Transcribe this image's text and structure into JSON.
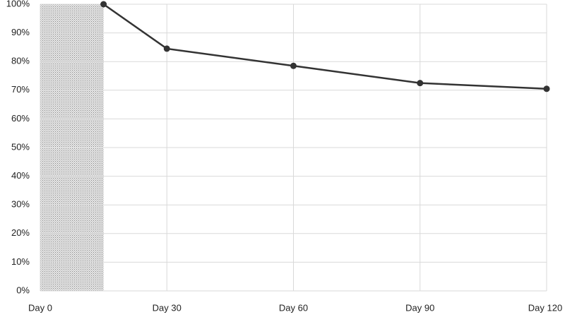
{
  "chart_data": {
    "type": "line",
    "x": [
      15,
      30,
      60,
      90,
      120
    ],
    "series": [
      {
        "values": [
          100,
          84.5,
          78.5,
          72.5,
          70.5
        ],
        "color": "#333333"
      }
    ],
    "shade": [
      0,
      15
    ],
    "xlim": [
      0,
      120
    ],
    "xticks": [
      {
        "value": 0,
        "label": "Day 0"
      },
      {
        "value": 30,
        "label": "Day 30"
      },
      {
        "value": 60,
        "label": "Day 60"
      },
      {
        "value": 90,
        "label": "Day 90"
      },
      {
        "value": 120,
        "label": "Day 120"
      }
    ],
    "ylim": [
      0,
      100
    ],
    "yticks": [
      {
        "value": 0,
        "label": "0%"
      },
      {
        "value": 10,
        "label": "10%"
      },
      {
        "value": 20,
        "label": "20%"
      },
      {
        "value": 30,
        "label": "30%"
      },
      {
        "value": 40,
        "label": "40%"
      },
      {
        "value": 50,
        "label": "50%"
      },
      {
        "value": 60,
        "label": "60%"
      },
      {
        "value": 70,
        "label": "70%"
      },
      {
        "value": 80,
        "label": "80%"
      },
      {
        "value": 90,
        "label": "90%"
      },
      {
        "value": 100,
        "label": "100%"
      }
    ],
    "grid": true
  }
}
